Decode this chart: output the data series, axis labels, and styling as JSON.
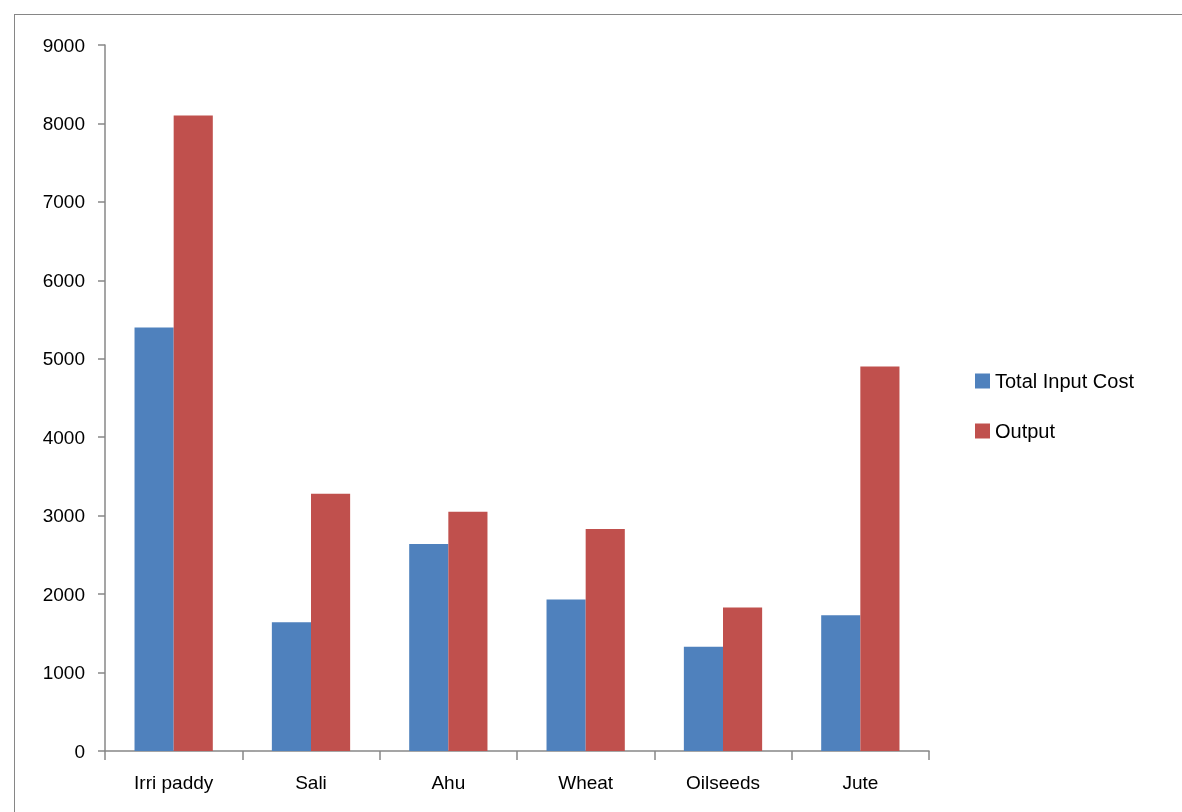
{
  "chart_data": {
    "type": "bar",
    "categories": [
      "Irri paddy",
      "Sali",
      "Ahu",
      "Wheat",
      "Oilseeds",
      "Jute"
    ],
    "series": [
      {
        "name": "Total Input Cost",
        "color": "#4f81bd",
        "values": [
          5400,
          1640,
          2640,
          1930,
          1330,
          1730
        ]
      },
      {
        "name": "Output",
        "color": "#c0504d",
        "values": [
          8100,
          3280,
          3050,
          2830,
          1830,
          4900
        ]
      }
    ],
    "ylim": [
      0,
      9000
    ],
    "yticks": [
      0,
      1000,
      2000,
      3000,
      4000,
      5000,
      6000,
      7000,
      8000,
      9000
    ],
    "grid": false,
    "legend": "right"
  }
}
